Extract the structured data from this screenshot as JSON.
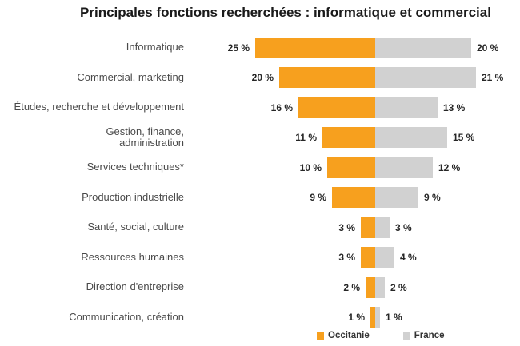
{
  "title": "Principales fonctions recherchées : informatique et commercial",
  "chart_data": {
    "type": "bar",
    "orientation": "horizontal-diverging",
    "title": "Principales fonctions recherchées : informatique et commercial",
    "categories": [
      "Informatique",
      "Commercial, marketing",
      "Études, recherche et développement",
      "Gestion, finance,\nadministration",
      "Services techniques*",
      "Production industrielle",
      "Santé, social, culture",
      "Ressources humaines",
      "Direction d'entreprise",
      "Communication, création"
    ],
    "series": [
      {
        "name": "Occitanie",
        "color": "#F7A01E",
        "side": "left",
        "values": [
          25,
          20,
          16,
          11,
          10,
          9,
          3,
          3,
          2,
          1
        ]
      },
      {
        "name": "France",
        "color": "#D1D1D1",
        "side": "right",
        "values": [
          20,
          21,
          13,
          15,
          12,
          9,
          3,
          4,
          2,
          1
        ]
      }
    ],
    "value_suffix": " %",
    "value_label_format": "{v} %",
    "xlabel": "",
    "ylabel": "",
    "axis_ticks": "none",
    "grid": false,
    "legend_position": "bottom",
    "colors": {
      "divider": "#d9d9d9",
      "value_text": "#262626",
      "category_text": "#4a4a4a",
      "title_text": "#1a1a1a"
    }
  }
}
